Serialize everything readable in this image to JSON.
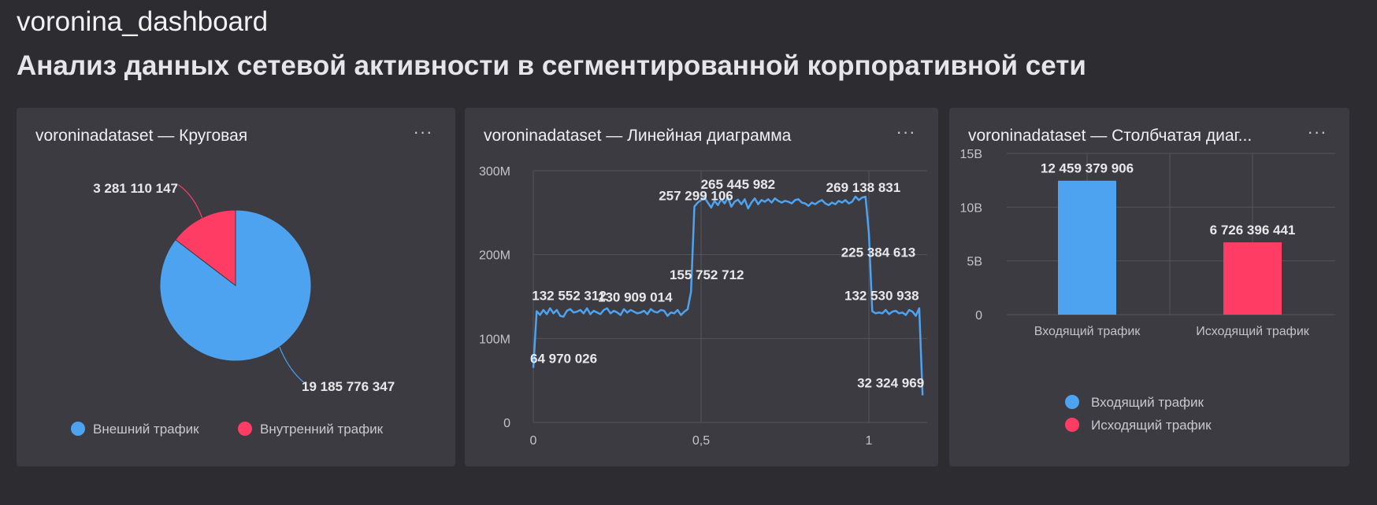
{
  "dashboard": {
    "title": "voronina_dashboard",
    "subtitle": "Анализ данных сетевой активности в сегментированной корпоративной сети"
  },
  "widgets": [
    {
      "title": "voroninadataset — Круговая",
      "menu_icon": "ellipsis-icon",
      "menu_label": "···"
    },
    {
      "title": "voroninadataset — Линейная диаграмма",
      "menu_icon": "ellipsis-icon",
      "menu_label": "···"
    },
    {
      "title": "voroninadataset — Столбчатая диаг...",
      "menu_icon": "ellipsis-icon",
      "menu_label": "···"
    }
  ],
  "colors": {
    "blue": "#4da3f0",
    "red": "#ff3d64",
    "card": "#3c3b41",
    "background": "#2d2c31"
  },
  "chart_data": [
    {
      "type": "pie",
      "slices": [
        {
          "name": "Внешний трафик",
          "value": 19185776347,
          "label": "19 185 776 347",
          "color": "#4da3f0"
        },
        {
          "name": "Внутренний трафик",
          "value": 3281110147,
          "label": "3 281 110 147",
          "color": "#ff3d64"
        }
      ],
      "legend_position": "bottom"
    },
    {
      "type": "line",
      "series": [
        {
          "color": "#4da3f0",
          "x": [
            0,
            0.01,
            0.02,
            0.03,
            0.04,
            0.05,
            0.06,
            0.07,
            0.08,
            0.09,
            0.1,
            0.11,
            0.12,
            0.13,
            0.14,
            0.15,
            0.16,
            0.17,
            0.18,
            0.19,
            0.2,
            0.21,
            0.22,
            0.23,
            0.24,
            0.25,
            0.26,
            0.27,
            0.28,
            0.29,
            0.3,
            0.31,
            0.32,
            0.33,
            0.34,
            0.35,
            0.36,
            0.37,
            0.38,
            0.39,
            0.4,
            0.41,
            0.42,
            0.43,
            0.44,
            0.45,
            0.46,
            0.47,
            0.48,
            0.49,
            0.5,
            0.51,
            0.52,
            0.53,
            0.54,
            0.55,
            0.56,
            0.57,
            0.58,
            0.59,
            0.6,
            0.61,
            0.62,
            0.63,
            0.64,
            0.65,
            0.66,
            0.67,
            0.68,
            0.69,
            0.7,
            0.71,
            0.72,
            0.73,
            0.74,
            0.75,
            0.76,
            0.77,
            0.78,
            0.79,
            0.8,
            0.81,
            0.82,
            0.83,
            0.84,
            0.85,
            0.86,
            0.87,
            0.88,
            0.89,
            0.9,
            0.91,
            0.92,
            0.93,
            0.94,
            0.95,
            0.96,
            0.97,
            0.98,
            0.99,
            1.0,
            1.01,
            1.02,
            1.03,
            1.04,
            1.05,
            1.06,
            1.07,
            1.08,
            1.09,
            1.1,
            1.11,
            1.12,
            1.13,
            1.14,
            1.15,
            1.16
          ],
          "y": [
            64970026,
            132552312,
            128000000,
            134000000,
            129000000,
            136000000,
            130000000,
            134000000,
            127000000,
            126000000,
            133000000,
            135000000,
            131000000,
            132000000,
            134000000,
            130000000,
            136000000,
            129000000,
            133000000,
            131000000,
            129000000,
            134000000,
            136000000,
            130000000,
            133000000,
            131000000,
            128000000,
            135000000,
            130909014,
            134000000,
            132000000,
            130000000,
            131000000,
            133000000,
            129000000,
            135000000,
            132000000,
            131000000,
            134000000,
            133000000,
            127000000,
            131000000,
            130000000,
            134000000,
            128000000,
            132000000,
            135000000,
            155752712,
            257299106,
            262000000,
            265000000,
            268000000,
            262000000,
            256000000,
            264000000,
            259000000,
            266000000,
            261000000,
            268000000,
            257000000,
            263000000,
            265445982,
            260000000,
            266000000,
            255000000,
            262000000,
            267000000,
            260000000,
            265000000,
            263000000,
            266000000,
            262000000,
            267000000,
            264000000,
            262000000,
            264000000,
            263000000,
            261000000,
            265000000,
            266000000,
            262000000,
            261000000,
            258000000,
            262000000,
            260000000,
            263000000,
            265000000,
            261000000,
            259000000,
            262000000,
            260000000,
            264000000,
            262000000,
            265000000,
            261000000,
            263000000,
            269138831,
            265000000,
            268000000,
            269000000,
            225384613,
            132530938,
            130000000,
            131000000,
            130000000,
            134000000,
            129000000,
            132000000,
            133000000,
            130000000,
            131000000,
            128000000,
            134000000,
            132000000,
            127000000,
            136000000,
            32324969
          ]
        }
      ],
      "data_labels": [
        {
          "x": 0,
          "y": 64970026,
          "text": "64 970 026"
        },
        {
          "x": 0.01,
          "y": 132552312,
          "text": "132 552 312"
        },
        {
          "x": 0.28,
          "y": 130909014,
          "text": "130 909 014"
        },
        {
          "x": 0.47,
          "y": 155752712,
          "text": "155 752 712"
        },
        {
          "x": 0.48,
          "y": 257299106,
          "text": "257 299 106"
        },
        {
          "x": 0.61,
          "y": 265445982,
          "text": "265 445 982"
        },
        {
          "x": 0.96,
          "y": 269138831,
          "text": "269 138 831"
        },
        {
          "x": 1.0,
          "y": 225384613,
          "text": "225 384 613"
        },
        {
          "x": 1.01,
          "y": 132530938,
          "text": "132 530 938"
        },
        {
          "x": 1.16,
          "y": 32324969,
          "text": "32 324 969"
        }
      ],
      "ylim": [
        0,
        300000000
      ],
      "xlim": [
        0,
        1.16
      ],
      "y_ticks": [
        {
          "value": 0,
          "label": "0"
        },
        {
          "value": 100000000,
          "label": "100M"
        },
        {
          "value": 200000000,
          "label": "200M"
        },
        {
          "value": 300000000,
          "label": "300M"
        }
      ],
      "x_ticks": [
        {
          "value": 0,
          "label": "0"
        },
        {
          "value": 0.5,
          "label": "0,5"
        },
        {
          "value": 1,
          "label": "1"
        }
      ],
      "grid": true
    },
    {
      "type": "bar",
      "categories": [
        "Входящий трафик",
        "Исходящий трафик"
      ],
      "values": [
        12459379906,
        6726396441
      ],
      "value_labels": [
        "12 459 379 906",
        "6 726 396 441"
      ],
      "colors": [
        "#4da3f0",
        "#ff3d64"
      ],
      "ylim": [
        0,
        15000000000
      ],
      "y_ticks": [
        {
          "value": 0,
          "label": "0"
        },
        {
          "value": 5000000000,
          "label": "5B"
        },
        {
          "value": 10000000000,
          "label": "10B"
        },
        {
          "value": 15000000000,
          "label": "15B"
        }
      ],
      "legend": [
        "Входящий трафик",
        "Исходящий трафик"
      ],
      "legend_position": "bottom",
      "grid": true
    }
  ]
}
